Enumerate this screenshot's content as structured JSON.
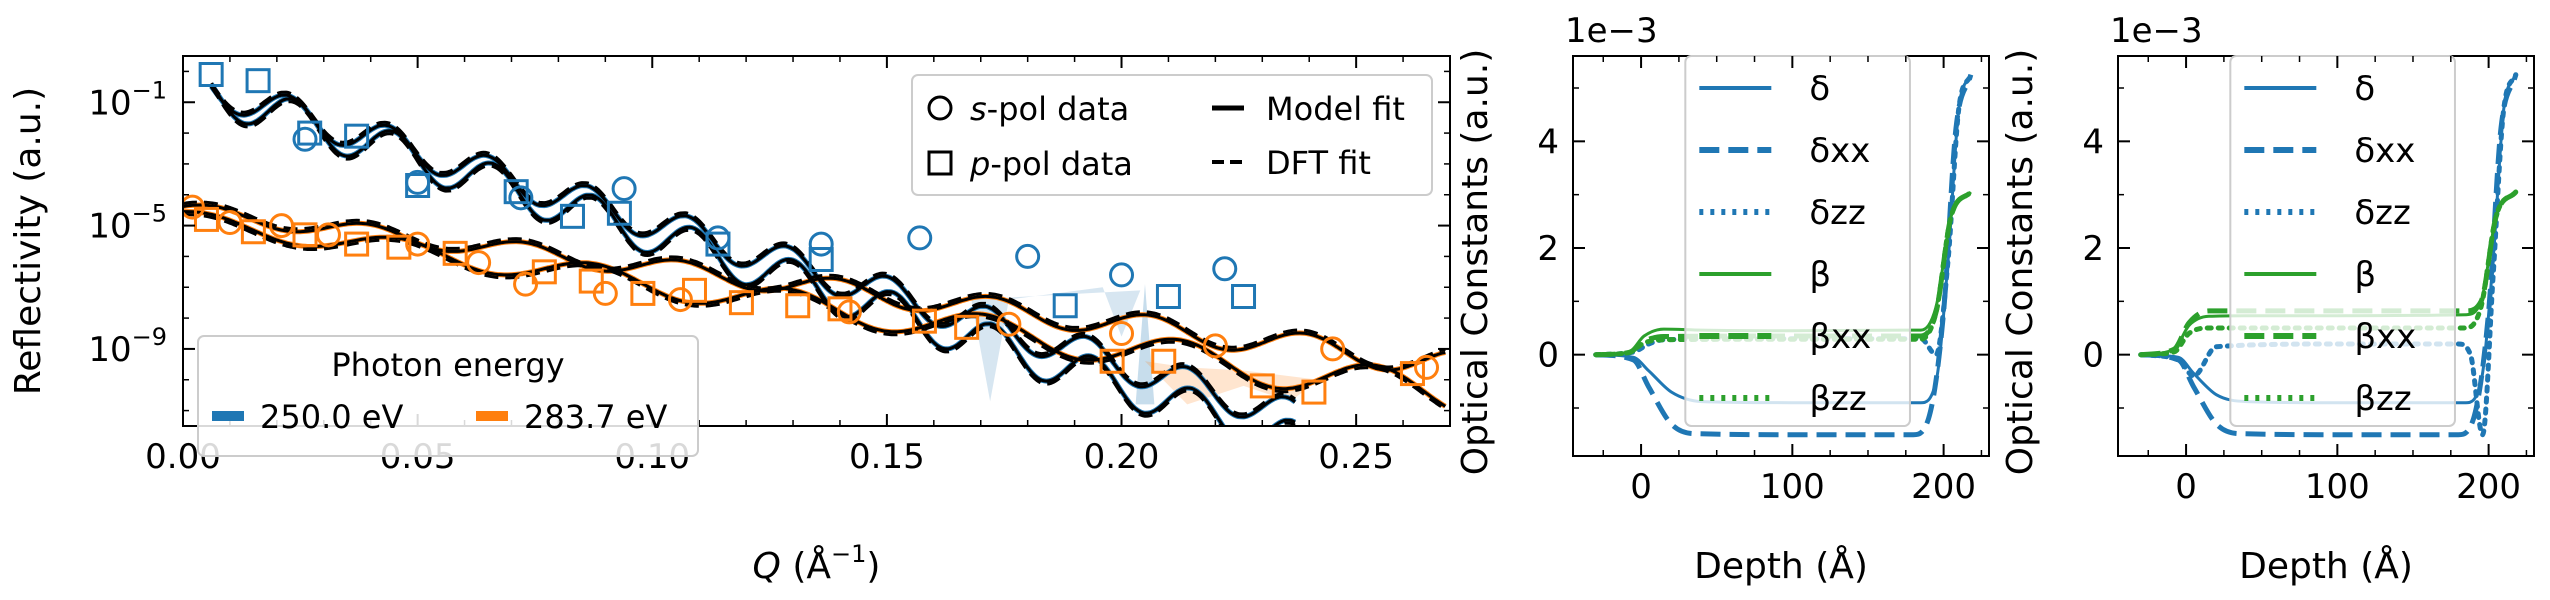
{
  "colors": {
    "blue": "#1f77b4",
    "orange": "#ff7f0e",
    "green": "#2ca02c",
    "black": "#000000"
  },
  "chart_data": [
    {
      "type": "line",
      "panel": "reflectivity",
      "xlabel_var": "Q",
      "xlabel_unit": "(Å",
      "xlabel_sup": "−1",
      "xlabel_close": ")",
      "ylabel": "Reflectivity (a.u.)",
      "xlim": [
        0.0,
        0.27
      ],
      "ylim_log10": [
        -11.5,
        0.5
      ],
      "yscale": "log",
      "x_ticks": [
        "0.00",
        "0.05",
        "0.10",
        "0.15",
        "0.20",
        "0.25"
      ],
      "x_tick_values": [
        0.0,
        0.05,
        0.1,
        0.15,
        0.2,
        0.25
      ],
      "y_ticks": [
        {
          "base": "10",
          "exp": "−1",
          "log10": -1
        },
        {
          "base": "10",
          "exp": "−5",
          "log10": -5
        },
        {
          "base": "10",
          "exp": "−9",
          "log10": -9
        }
      ],
      "legend_markers": {
        "placement": "top-right",
        "entries": [
          {
            "marker": "circle",
            "italic": "s",
            "rest": "-pol data"
          },
          {
            "marker": "square",
            "italic": "p",
            "rest": "-pol data"
          },
          {
            "line": "solid",
            "label": "Model fit"
          },
          {
            "line": "dashed",
            "label": "DFT fit"
          }
        ]
      },
      "legend_energy": {
        "placement": "bottom-left",
        "title": "Photon energy",
        "entries": [
          {
            "label": "250.0 eV",
            "color": "blue"
          },
          {
            "label": "283.7 eV",
            "color": "orange"
          }
        ]
      },
      "series": [
        {
          "energy": "250.0 eV",
          "polarization": "s",
          "color": "blue",
          "marker": "circle",
          "x": [
            0.026,
            0.05,
            0.072,
            0.094,
            0.114,
            0.136,
            0.157,
            0.18,
            0.2,
            0.222
          ],
          "log10": [
            -2.2,
            -3.6,
            -4.1,
            -3.8,
            -5.4,
            -5.6,
            -5.4,
            -6.0,
            -6.6,
            -6.4
          ]
        },
        {
          "energy": "250.0 eV",
          "polarization": "p",
          "color": "blue",
          "marker": "square",
          "x": [
            0.006,
            0.016,
            0.027,
            0.037,
            0.05,
            0.071,
            0.083,
            0.093,
            0.114,
            0.136,
            0.188,
            0.21,
            0.226
          ],
          "log10": [
            -0.1,
            -0.3,
            -2.0,
            -2.1,
            -3.7,
            -3.9,
            -4.7,
            -4.6,
            -5.6,
            -6.1,
            -7.6,
            -7.3,
            -7.3
          ]
        },
        {
          "energy": "283.7 eV",
          "polarization": "s",
          "color": "orange",
          "marker": "circle",
          "x": [
            0.002,
            0.01,
            0.021,
            0.031,
            0.05,
            0.063,
            0.073,
            0.09,
            0.106,
            0.142,
            0.176,
            0.2,
            0.22,
            0.245,
            0.265
          ],
          "log10": [
            -4.4,
            -4.9,
            -5.0,
            -5.3,
            -5.6,
            -6.2,
            -6.9,
            -7.2,
            -7.4,
            -7.8,
            -8.2,
            -8.5,
            -8.9,
            -9.0,
            -9.6
          ]
        },
        {
          "energy": "283.7 eV",
          "polarization": "p",
          "color": "orange",
          "marker": "square",
          "x": [
            0.005,
            0.015,
            0.026,
            0.037,
            0.046,
            0.058,
            0.077,
            0.087,
            0.098,
            0.109,
            0.119,
            0.131,
            0.14,
            0.158,
            0.167,
            0.198,
            0.209,
            0.23,
            0.241,
            0.262
          ],
          "log10": [
            -4.8,
            -5.2,
            -5.3,
            -5.6,
            -5.7,
            -5.9,
            -6.5,
            -6.8,
            -7.2,
            -7.1,
            -7.5,
            -7.6,
            -7.7,
            -8.1,
            -8.3,
            -9.4,
            -9.4,
            -10.2,
            -10.4,
            -9.8
          ]
        }
      ]
    },
    {
      "type": "line",
      "panel": "optical-constants-1",
      "xlabel": "Depth (Å)",
      "ylabel": "Optical Constants (a.u.)",
      "offset_text": "1e−3",
      "xlim": [
        -45,
        230
      ],
      "ylim": [
        -1.9,
        5.6
      ],
      "x_ticks": [
        "0",
        "100",
        "200"
      ],
      "x_tick_values": [
        0,
        100,
        200
      ],
      "y_ticks": [
        "0",
        "2",
        "4"
      ],
      "y_tick_values": [
        0,
        2,
        4
      ],
      "legend_entries": [
        "δ",
        "δxx",
        "δzz",
        "β",
        "βxx",
        "βzz"
      ],
      "series": [
        {
          "name": "δ",
          "color": "blue",
          "style": "solid",
          "x": [
            -30,
            -5,
            5,
            20,
            40,
            100,
            185,
            195,
            203,
            210,
            218
          ],
          "y": [
            0.0,
            -0.05,
            -0.3,
            -0.7,
            -0.88,
            -0.9,
            -0.9,
            -0.5,
            1.8,
            4.6,
            5.25
          ]
        },
        {
          "name": "δxx",
          "color": "blue",
          "style": "dashed",
          "x": [
            -30,
            -5,
            5,
            20,
            35,
            100,
            180,
            190,
            200,
            208,
            218
          ],
          "y": [
            0.0,
            -0.1,
            -0.6,
            -1.3,
            -1.48,
            -1.5,
            -1.5,
            -1.2,
            0.8,
            4.2,
            5.25
          ]
        },
        {
          "name": "δzz",
          "color": "blue",
          "style": "dotted",
          "x": [
            -30,
            -5,
            5,
            15,
            100,
            185,
            195,
            203,
            210,
            218
          ],
          "y": [
            0.0,
            0.05,
            0.2,
            0.28,
            0.3,
            0.3,
            0.0,
            1.8,
            4.6,
            5.25
          ]
        },
        {
          "name": "β",
          "color": "green",
          "style": "solid",
          "x": [
            -30,
            -8,
            2,
            15,
            40,
            100,
            185,
            195,
            205,
            218
          ],
          "y": [
            0.0,
            0.05,
            0.35,
            0.48,
            0.46,
            0.45,
            0.46,
            0.9,
            2.6,
            3.05
          ]
        },
        {
          "name": "βxx",
          "color": "green",
          "style": "dashed",
          "x": [
            -30,
            -8,
            2,
            15,
            100,
            185,
            195,
            205,
            218
          ],
          "y": [
            0.0,
            0.04,
            0.25,
            0.34,
            0.35,
            0.35,
            0.8,
            2.6,
            3.05
          ]
        },
        {
          "name": "βzz",
          "color": "green",
          "style": "dotted",
          "x": [
            -30,
            -8,
            2,
            15,
            100,
            185,
            195,
            205,
            218
          ],
          "y": [
            0.0,
            0.04,
            0.22,
            0.28,
            0.29,
            0.29,
            0.8,
            2.6,
            3.05
          ]
        }
      ]
    },
    {
      "type": "line",
      "panel": "optical-constants-2",
      "xlabel": "Depth (Å)",
      "ylabel": "Optical Constants (a.u.)",
      "offset_text": "1e−3",
      "xlim": [
        -45,
        230
      ],
      "ylim": [
        -1.9,
        5.6
      ],
      "x_ticks": [
        "0",
        "100",
        "200"
      ],
      "x_tick_values": [
        0,
        100,
        200
      ],
      "y_ticks": [
        "0",
        "2",
        "4"
      ],
      "y_tick_values": [
        0,
        2,
        4
      ],
      "legend_entries": [
        "δ",
        "δxx",
        "δzz",
        "β",
        "βxx",
        "βzz"
      ],
      "series": [
        {
          "name": "δ",
          "color": "blue",
          "style": "solid",
          "x": [
            -30,
            -5,
            5,
            20,
            40,
            100,
            185,
            195,
            203,
            210,
            218
          ],
          "y": [
            0.0,
            -0.05,
            -0.35,
            -0.75,
            -0.88,
            -0.9,
            -0.9,
            -0.5,
            1.8,
            4.6,
            5.25
          ]
        },
        {
          "name": "δxx",
          "color": "blue",
          "style": "dashed",
          "x": [
            -30,
            -5,
            5,
            20,
            35,
            100,
            180,
            190,
            200,
            208,
            218
          ],
          "y": [
            0.0,
            -0.1,
            -0.6,
            -1.3,
            -1.48,
            -1.5,
            -1.5,
            -1.2,
            0.8,
            4.2,
            5.25
          ]
        },
        {
          "name": "δzz",
          "color": "blue",
          "style": "dotted",
          "x": [
            -30,
            -5,
            5,
            20,
            100,
            180,
            188,
            196,
            203,
            210,
            218
          ],
          "y": [
            0.0,
            -0.1,
            -0.4,
            0.15,
            0.2,
            0.2,
            0.0,
            -1.5,
            1.5,
            4.6,
            5.25
          ]
        },
        {
          "name": "β",
          "color": "green",
          "style": "solid",
          "x": [
            -30,
            -8,
            2,
            15,
            40,
            100,
            185,
            195,
            205,
            218
          ],
          "y": [
            0.0,
            0.1,
            0.55,
            0.72,
            0.73,
            0.73,
            0.75,
            1.0,
            2.6,
            3.05
          ]
        },
        {
          "name": "βxx",
          "color": "green",
          "style": "dashed",
          "x": [
            -30,
            -8,
            2,
            15,
            100,
            185,
            195,
            205,
            218
          ],
          "y": [
            0.0,
            0.1,
            0.6,
            0.82,
            0.82,
            0.82,
            1.0,
            2.6,
            3.05
          ]
        },
        {
          "name": "βzz",
          "color": "green",
          "style": "dotted",
          "x": [
            -30,
            -8,
            2,
            15,
            100,
            185,
            195,
            205,
            218
          ],
          "y": [
            0.0,
            0.05,
            0.4,
            0.5,
            0.5,
            0.5,
            0.9,
            2.6,
            3.05
          ]
        }
      ]
    }
  ]
}
